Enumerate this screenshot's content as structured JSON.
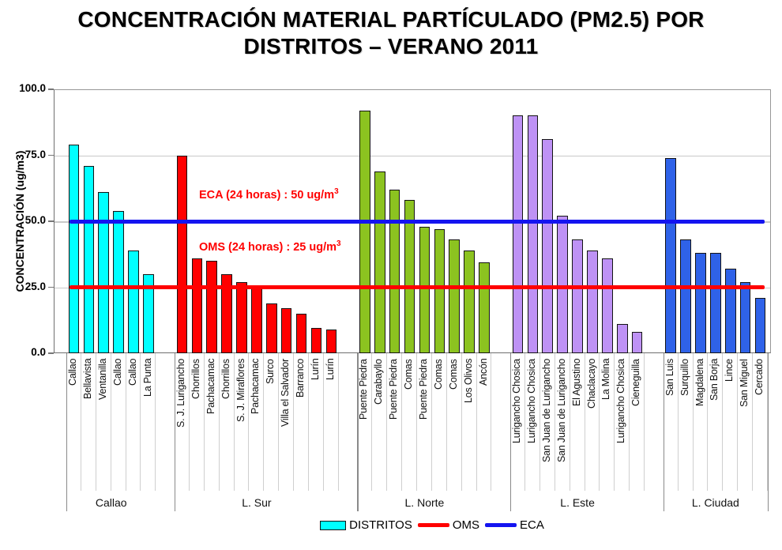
{
  "title": {
    "line1": "CONCENTRACIÓN MATERIAL PARTÍCULADO (PM2.5) POR",
    "line2": "DISTRITOS – VERANO 2011"
  },
  "y_axis": {
    "title": "CONCENTRACIÓN (ug/m3)",
    "tick_labels": [
      "100.0",
      "75.0",
      "50.0",
      "25.0",
      "0.0"
    ]
  },
  "annotations": {
    "eca": {
      "text": "ECA (24 horas) : 50 ug/m",
      "superscript": "3",
      "color": "#FF0000"
    },
    "oms": {
      "text": "OMS (24 horas) : 25 ug/m",
      "superscript": "3",
      "color": "#FF0000"
    }
  },
  "legend": {
    "items": [
      {
        "label": "DISTRITOS",
        "type": "swatch",
        "color": "#00FFFF"
      },
      {
        "label": "OMS",
        "type": "line",
        "color": "#FF0000"
      },
      {
        "label": "ECA",
        "type": "line",
        "color": "#1414F0"
      }
    ]
  },
  "chart_data": {
    "type": "bar",
    "title": "CONCENTRACIÓN MATERIAL PARTÍCULADO (PM2.5) POR DISTRITOS – VERANO 2011",
    "xlabel": "",
    "ylabel": "CONCENTRACIÓN (ug/m3)",
    "ylim": [
      0,
      100
    ],
    "yticks": [
      0,
      25,
      50,
      75,
      100
    ],
    "gridlines": [
      25,
      50,
      75
    ],
    "grid": true,
    "legend_position": "bottom",
    "reference_lines": [
      {
        "name": "ECA",
        "value": 50,
        "color": "#1414F0",
        "label": "ECA (24 horas) : 50 ug/m3"
      },
      {
        "name": "OMS",
        "value": 25,
        "color": "#FF0000",
        "label": "OMS (24 horas) : 25 ug/m3"
      }
    ],
    "groups": [
      {
        "name": "Callao",
        "color": "#00FFFF",
        "bars": [
          {
            "label": "Callao",
            "value": 79
          },
          {
            "label": "Bellavista",
            "value": 71
          },
          {
            "label": "Ventanilla",
            "value": 61
          },
          {
            "label": "Callao",
            "value": 54
          },
          {
            "label": "Callao",
            "value": 39
          },
          {
            "label": "La Punta",
            "value": 30
          }
        ]
      },
      {
        "name": "L. Sur",
        "color": "#FF0000",
        "bars": [
          {
            "label": "S. J. Lurigancho",
            "value": 75
          },
          {
            "label": "Chorrillos",
            "value": 36
          },
          {
            "label": "Pachacamac",
            "value": 35
          },
          {
            "label": "Chorrillos",
            "value": 30
          },
          {
            "label": "S. J. Miraflores",
            "value": 27
          },
          {
            "label": "Pachacamac",
            "value": 25
          },
          {
            "label": "Surco",
            "value": 19
          },
          {
            "label": "Villa el Salvador",
            "value": 17
          },
          {
            "label": "Barranco",
            "value": 15
          },
          {
            "label": "Lurín",
            "value": 9.5
          },
          {
            "label": "Lurín",
            "value": 9
          }
        ]
      },
      {
        "name": "L. Norte",
        "color": "#8CC320",
        "bars": [
          {
            "label": "Puente Piedra",
            "value": 92
          },
          {
            "label": "Carabayllo",
            "value": 69
          },
          {
            "label": "Puente Piedra",
            "value": 62
          },
          {
            "label": "Comas",
            "value": 58
          },
          {
            "label": "Puente Piedra",
            "value": 48
          },
          {
            "label": "Comas",
            "value": 47
          },
          {
            "label": "Comas",
            "value": 43
          },
          {
            "label": "Los Olivos",
            "value": 39
          },
          {
            "label": "Ancón",
            "value": 34.5
          }
        ]
      },
      {
        "name": "L. Este",
        "color": "#BE92F5",
        "bars": [
          {
            "label": "Lurigancho Chosica",
            "value": 90
          },
          {
            "label": "Lurigancho Chosica",
            "value": 90
          },
          {
            "label": "San Juan de Lurigancho",
            "value": 81
          },
          {
            "label": "San Juan de Lurigancho",
            "value": 52
          },
          {
            "label": "El Agustino",
            "value": 43
          },
          {
            "label": "Chaclacayo",
            "value": 39
          },
          {
            "label": "La Molina",
            "value": 36
          },
          {
            "label": "Lurigancho Chosica",
            "value": 11
          },
          {
            "label": "Cieneguilla",
            "value": 8
          }
        ]
      },
      {
        "name": "L. Ciudad",
        "color": "#2F62E8",
        "bars": [
          {
            "label": "San Luis",
            "value": 74
          },
          {
            "label": "Surquillo",
            "value": 43
          },
          {
            "label": "Magdalena",
            "value": 38
          },
          {
            "label": "San Borja",
            "value": 38
          },
          {
            "label": "Lince",
            "value": 32
          },
          {
            "label": "San Miguel",
            "value": 27
          },
          {
            "label": "Cercado",
            "value": 21
          }
        ]
      }
    ]
  }
}
